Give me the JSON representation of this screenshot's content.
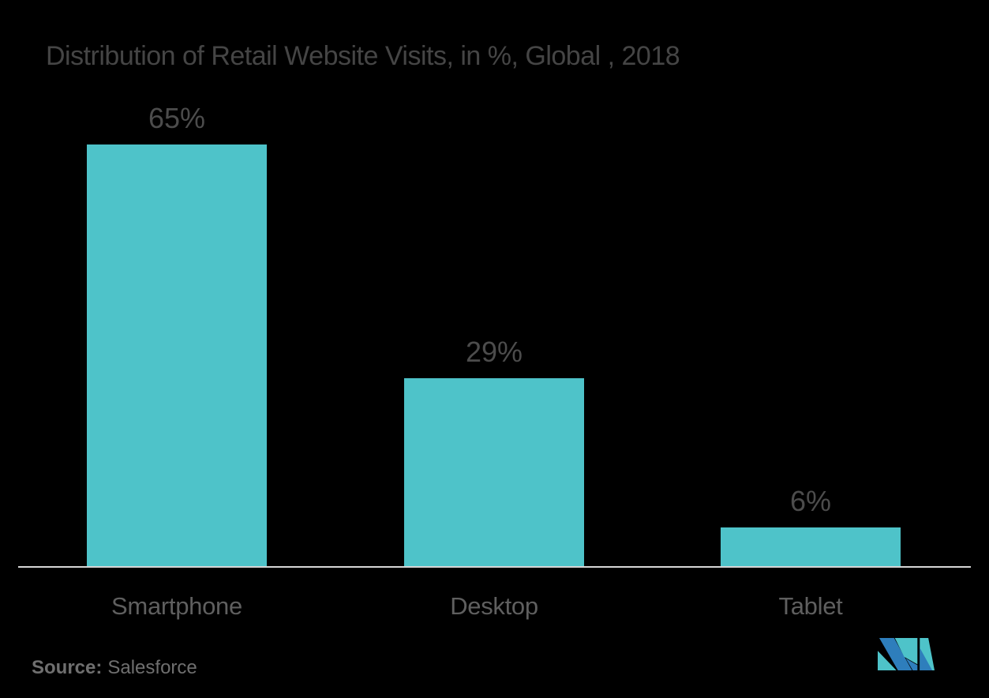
{
  "colors": {
    "background": "#000000",
    "bar": "#4EC3C9",
    "title_text": "#454545",
    "value_label_text": "#4C4C4C",
    "category_label_text": "#5F5F5F",
    "source_text": "#6F6F6F",
    "axis_line": "#D6D6D6",
    "logo_teal": "#4EC3C9",
    "logo_blue": "#2E7EBC"
  },
  "chart_data": {
    "type": "bar",
    "title": "Distribution of Retail Website Visits, in %, Global , 2018",
    "categories": [
      "Smartphone",
      "Desktop",
      "Tablet"
    ],
    "values": [
      65,
      29,
      6
    ],
    "value_labels": [
      "65%",
      "29%",
      "6%"
    ],
    "unit": "%",
    "xlabel": "",
    "ylabel": "",
    "ylim": [
      0,
      72
    ],
    "grid": false,
    "legend": false,
    "y_axis_visible": false,
    "x_axis_line": true
  },
  "source": {
    "prefix": "Source:",
    "text": "Salesforce"
  },
  "logo": {
    "name": "Mordor Intelligence M logo"
  }
}
